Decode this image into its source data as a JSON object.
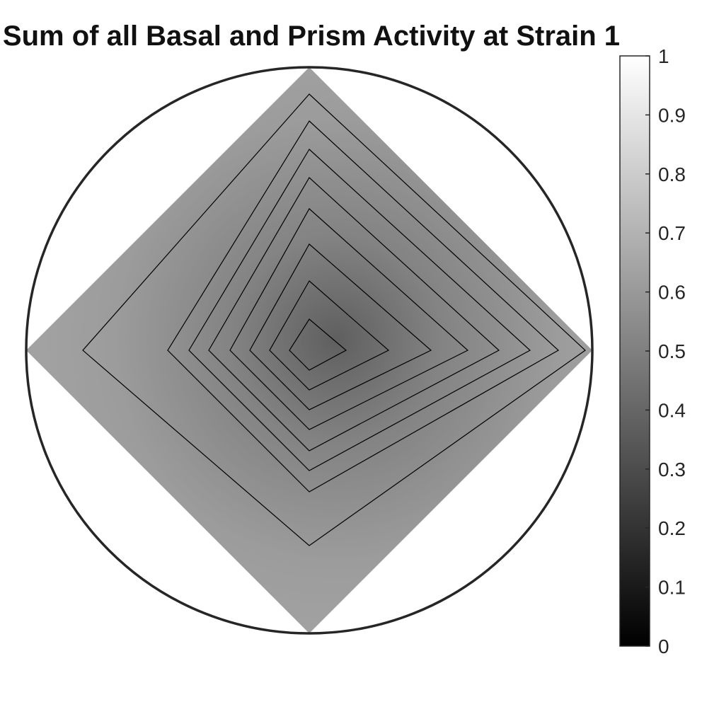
{
  "chart_data": {
    "type": "heatmap",
    "title": "Sum of all Basal and Prism Activity at Strain 1",
    "colormap": "gray",
    "colorbar": {
      "range": [
        0,
        1
      ],
      "ticks": [
        "0",
        "0.1",
        "0.2",
        "0.3",
        "0.4",
        "0.5",
        "0.6",
        "0.7",
        "0.8",
        "0.9",
        "1"
      ]
    },
    "region_shape": "square rotated 45 degrees inside unit circle",
    "outer_fill_value": 0.62,
    "min_value": 0.36,
    "contours": [
      {
        "value": 0.6,
        "top": 0.905,
        "bottom": -0.69,
        "left": -0.8,
        "right": 0.975
      },
      {
        "value": 0.575,
        "top": 0.81,
        "bottom": -0.5,
        "left": -0.5,
        "right": 0.88
      },
      {
        "value": 0.55,
        "top": 0.71,
        "bottom": -0.425,
        "left": -0.425,
        "right": 0.78
      },
      {
        "value": 0.525,
        "top": 0.61,
        "bottom": -0.355,
        "left": -0.355,
        "right": 0.67
      },
      {
        "value": 0.5,
        "top": 0.5,
        "bottom": -0.28,
        "left": -0.28,
        "right": 0.56
      },
      {
        "value": 0.475,
        "top": 0.375,
        "bottom": -0.21,
        "left": -0.21,
        "right": 0.43
      },
      {
        "value": 0.45,
        "top": 0.245,
        "bottom": -0.14,
        "left": -0.14,
        "right": 0.28
      },
      {
        "value": 0.425,
        "top": 0.11,
        "bottom": -0.07,
        "left": -0.07,
        "right": 0.13
      }
    ],
    "boundary_circle": true,
    "grid": false
  }
}
